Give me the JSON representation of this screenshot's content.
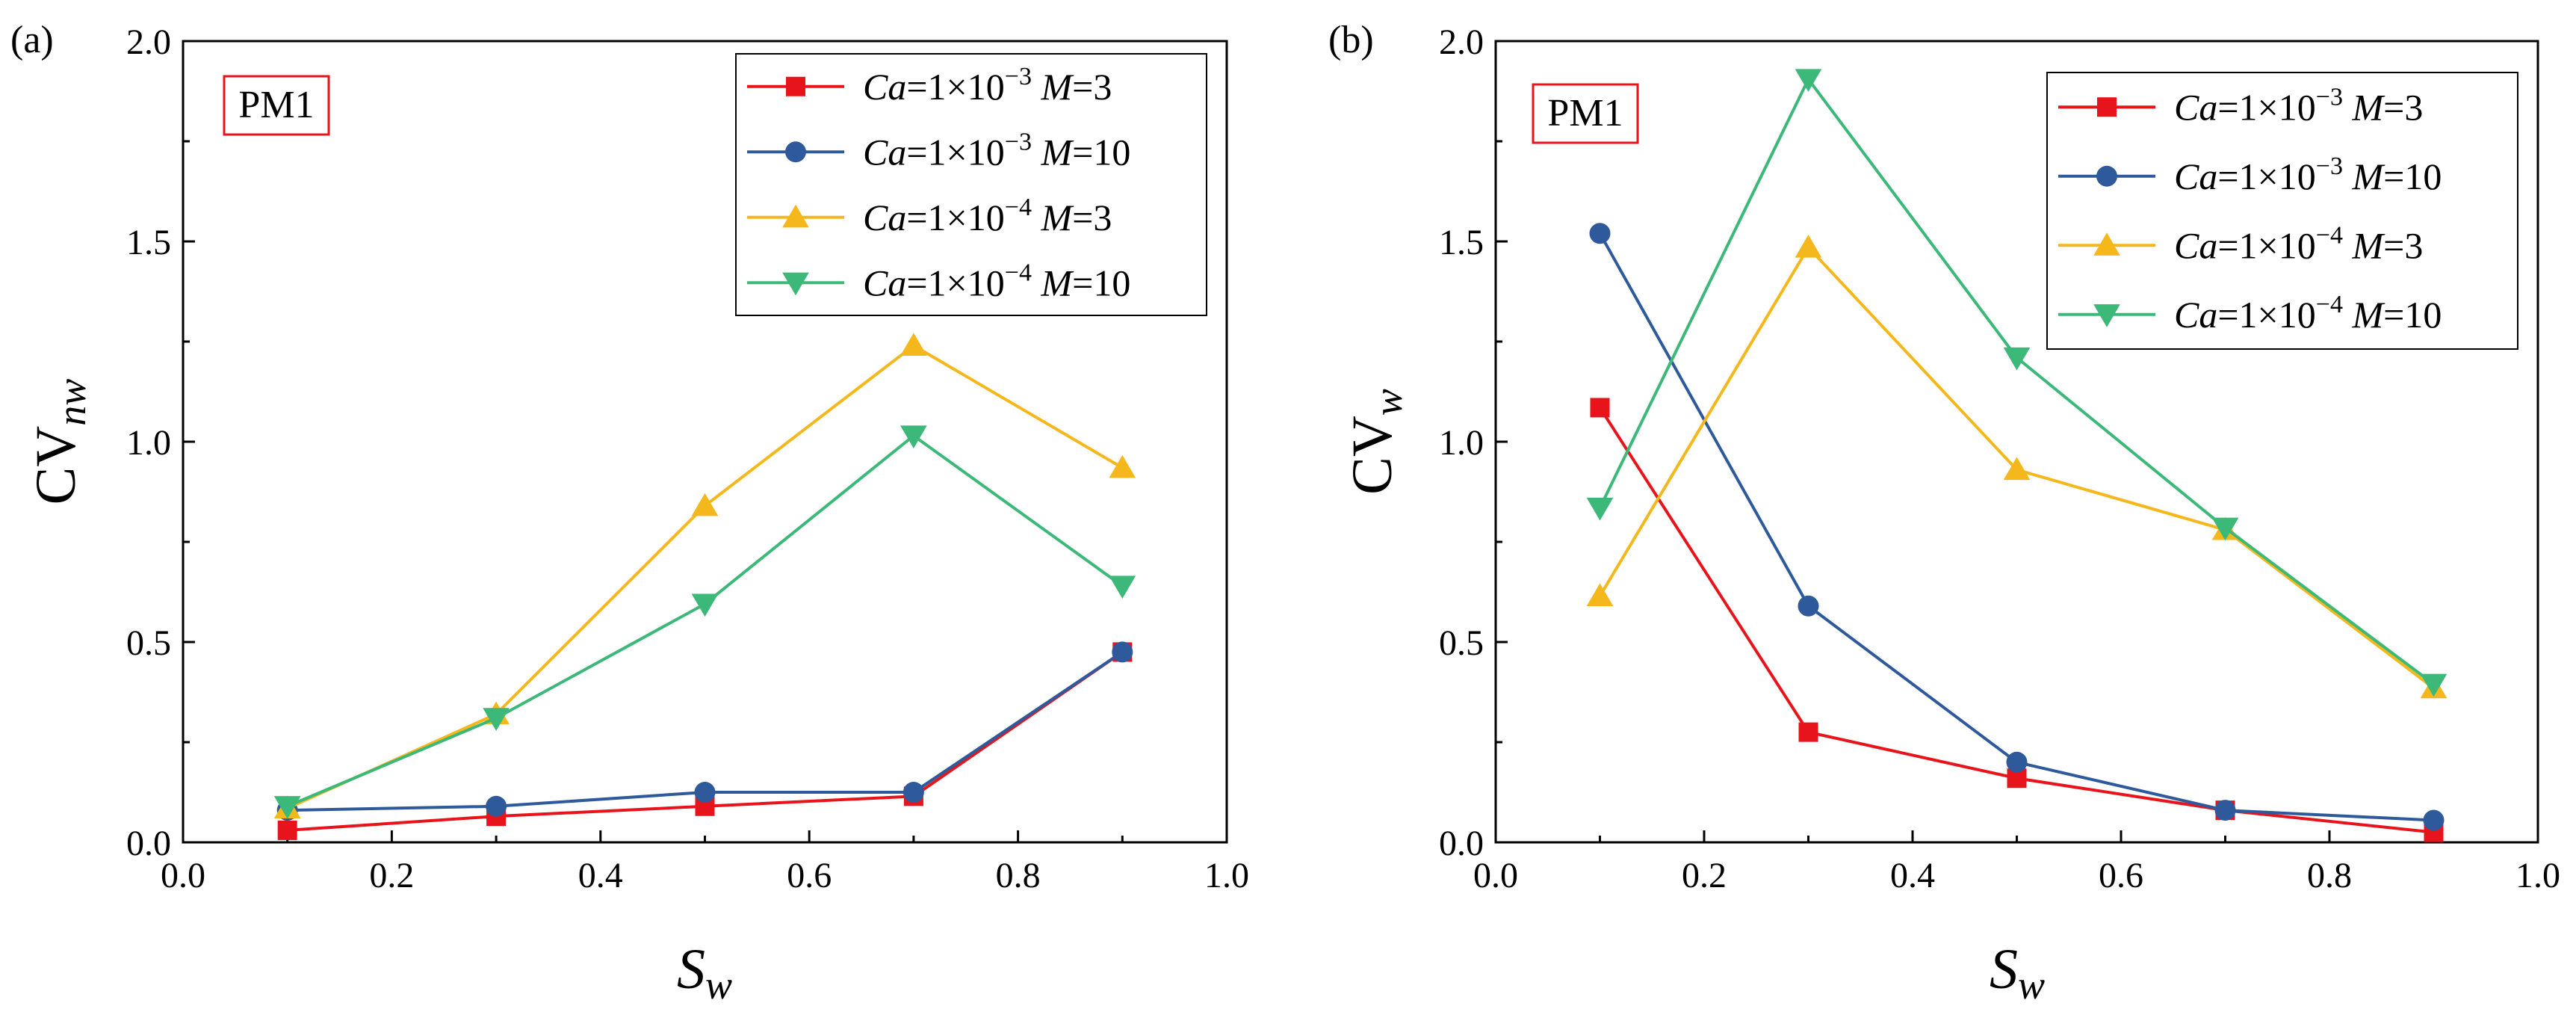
{
  "chart_data": [
    {
      "type": "line",
      "panel_label": "(a)",
      "tag": "PM1",
      "ylabel_main": "CV",
      "ylabel_sub": "nw",
      "xlabel_main": "S",
      "xlabel_sub": "w",
      "xlim": [
        0.0,
        1.0
      ],
      "ylim": [
        0.0,
        2.0
      ],
      "x_ticks": [
        "0.0",
        "0.2",
        "0.4",
        "0.6",
        "0.8",
        "1.0"
      ],
      "y_ticks": [
        "0.0",
        "0.5",
        "1.0",
        "1.5",
        "2.0"
      ],
      "x": [
        0.1,
        0.3,
        0.5,
        0.7,
        0.9
      ],
      "legend_position": "top-right",
      "series": [
        {
          "ca_exp": "−3",
          "m": "3",
          "color": "#e8141b",
          "marker": "square",
          "values": [
            0.03,
            0.065,
            0.09,
            0.115,
            0.475
          ]
        },
        {
          "ca_exp": "−3",
          "m": "10",
          "color": "#2e5a9c",
          "marker": "circle",
          "values": [
            0.08,
            0.09,
            0.125,
            0.125,
            0.475
          ]
        },
        {
          "ca_exp": "−4",
          "m": "3",
          "color": "#f5b81c",
          "marker": "triangle-up",
          "values": [
            0.085,
            0.32,
            0.84,
            1.24,
            0.935
          ]
        },
        {
          "ca_exp": "−4",
          "m": "10",
          "color": "#3cb878",
          "marker": "triangle-down",
          "values": [
            0.09,
            0.31,
            0.595,
            1.015,
            0.64
          ]
        }
      ]
    },
    {
      "type": "line",
      "panel_label": "(b)",
      "tag": "PM1",
      "ylabel_main": "CV",
      "ylabel_sub": "w",
      "xlabel_main": "S",
      "xlabel_sub": "w",
      "xlim": [
        0.0,
        1.0
      ],
      "ylim": [
        0.0,
        2.0
      ],
      "x_ticks": [
        "0.0",
        "0.2",
        "0.4",
        "0.6",
        "0.8",
        "1.0"
      ],
      "y_ticks": [
        "0.0",
        "0.5",
        "1.0",
        "1.5",
        "2.0"
      ],
      "x": [
        0.1,
        0.3,
        0.5,
        0.7,
        0.9
      ],
      "legend_position": "top-right",
      "series": [
        {
          "ca_exp": "−3",
          "m": "3",
          "color": "#e8141b",
          "marker": "square",
          "values": [
            1.085,
            0.275,
            0.16,
            0.08,
            0.025
          ]
        },
        {
          "ca_exp": "−3",
          "m": "10",
          "color": "#2e5a9c",
          "marker": "circle",
          "values": [
            1.52,
            0.59,
            0.2,
            0.08,
            0.055
          ]
        },
        {
          "ca_exp": "−4",
          "m": "3",
          "color": "#f5b81c",
          "marker": "triangle-up",
          "values": [
            0.615,
            1.485,
            0.93,
            0.78,
            0.385
          ]
        },
        {
          "ca_exp": "−4",
          "m": "10",
          "color": "#3cb878",
          "marker": "triangle-down",
          "values": [
            0.835,
            1.905,
            1.21,
            0.785,
            0.395
          ]
        }
      ]
    }
  ],
  "legend_text": {
    "ca": "Ca",
    "eq_prefix": "=1×10",
    "m": "M",
    "eq": "="
  }
}
